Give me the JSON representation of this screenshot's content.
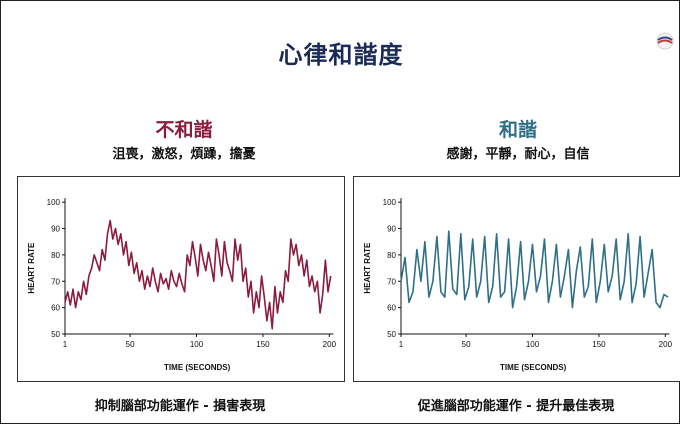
{
  "slide": {
    "title": "心律和諧度",
    "colors": {
      "title": "#1b2b57",
      "incoherent": "#8a1c3c",
      "coherent": "#2f6f87"
    }
  },
  "left": {
    "heading": "不和諧",
    "emotions": "沮喪，激怒，煩躁，擔憂",
    "caption": "抑制腦部功能運作 -  損害表現"
  },
  "right": {
    "heading": "和諧",
    "emotions": "感謝，平靜，耐心，自信",
    "caption": "促進腦部功能運作 -  提升最佳表現"
  },
  "chart_data": [
    {
      "type": "line",
      "xlabel": "TIME (SECONDS)",
      "ylabel": "HEART RATE",
      "xlim": [
        1,
        205
      ],
      "ylim": [
        50,
        105
      ],
      "xticks": [
        1,
        50,
        100,
        150,
        200
      ],
      "yticks": [
        50,
        60,
        70,
        80,
        90,
        100
      ],
      "series": [
        {
          "color": "#8a1c3c",
          "x": [
            1,
            3,
            5,
            7,
            9,
            11,
            13,
            15,
            17,
            19,
            21,
            23,
            25,
            27,
            29,
            31,
            33,
            35,
            37,
            39,
            41,
            43,
            45,
            47,
            49,
            51,
            53,
            55,
            57,
            59,
            61,
            63,
            65,
            67,
            69,
            71,
            73,
            75,
            77,
            79,
            81,
            83,
            85,
            87,
            89,
            91,
            93,
            95,
            97,
            99,
            101,
            103,
            105,
            107,
            109,
            111,
            113,
            115,
            117,
            119,
            121,
            123,
            125,
            127,
            129,
            131,
            133,
            135,
            137,
            139,
            141,
            143,
            145,
            147,
            149,
            151,
            153,
            155,
            157,
            159,
            161,
            163,
            165,
            167,
            169,
            171,
            173,
            175,
            177,
            179,
            181,
            183,
            185,
            187,
            189,
            191,
            193,
            195,
            197,
            199,
            201
          ],
          "y": [
            62,
            66,
            61,
            67,
            60,
            66,
            63,
            70,
            65,
            72,
            75,
            80,
            77,
            74,
            82,
            78,
            88,
            93,
            86,
            90,
            84,
            88,
            80,
            85,
            76,
            81,
            73,
            77,
            70,
            74,
            67,
            72,
            68,
            75,
            70,
            66,
            73,
            69,
            71,
            67,
            74,
            70,
            68,
            73,
            69,
            66,
            80,
            76,
            85,
            79,
            72,
            84,
            78,
            74,
            81,
            76,
            70,
            86,
            80,
            72,
            85,
            77,
            74,
            70,
            86,
            78,
            84,
            70,
            75,
            64,
            70,
            58,
            66,
            60,
            72,
            64,
            55,
            62,
            52,
            68,
            58,
            66,
            62,
            74,
            70,
            86,
            80,
            84,
            76,
            80,
            72,
            78,
            68,
            72,
            66,
            70,
            58,
            65,
            78,
            66,
            72
          ]
        }
      ]
    },
    {
      "type": "line",
      "xlabel": "TIME (SECONDS)",
      "ylabel": "HEART RATE",
      "xlim": [
        1,
        205
      ],
      "ylim": [
        50,
        105
      ],
      "xticks": [
        1,
        50,
        100,
        150,
        200
      ],
      "yticks": [
        50,
        60,
        70,
        80,
        90,
        100
      ],
      "series": [
        {
          "color": "#2f6f87",
          "x": [
            1,
            4,
            7,
            10,
            13,
            16,
            19,
            22,
            25,
            28,
            31,
            34,
            37,
            40,
            43,
            46,
            49,
            52,
            55,
            58,
            61,
            64,
            67,
            70,
            73,
            76,
            79,
            82,
            85,
            88,
            91,
            94,
            97,
            100,
            103,
            106,
            109,
            112,
            115,
            118,
            121,
            124,
            127,
            130,
            133,
            136,
            139,
            142,
            145,
            148,
            151,
            154,
            157,
            160,
            163,
            166,
            169,
            172,
            175,
            178,
            181,
            184,
            187,
            190,
            193,
            196,
            199,
            202
          ],
          "y": [
            70,
            79,
            62,
            66,
            82,
            70,
            85,
            64,
            70,
            87,
            66,
            64,
            89,
            67,
            65,
            88,
            63,
            68,
            86,
            64,
            70,
            87,
            62,
            68,
            88,
            64,
            66,
            86,
            60,
            68,
            85,
            63,
            70,
            84,
            66,
            72,
            86,
            62,
            70,
            84,
            64,
            72,
            82,
            60,
            74,
            83,
            64,
            68,
            86,
            62,
            70,
            84,
            66,
            72,
            86,
            63,
            70,
            88,
            62,
            69,
            87,
            64,
            73,
            82,
            62,
            60,
            65,
            64
          ]
        }
      ]
    }
  ]
}
